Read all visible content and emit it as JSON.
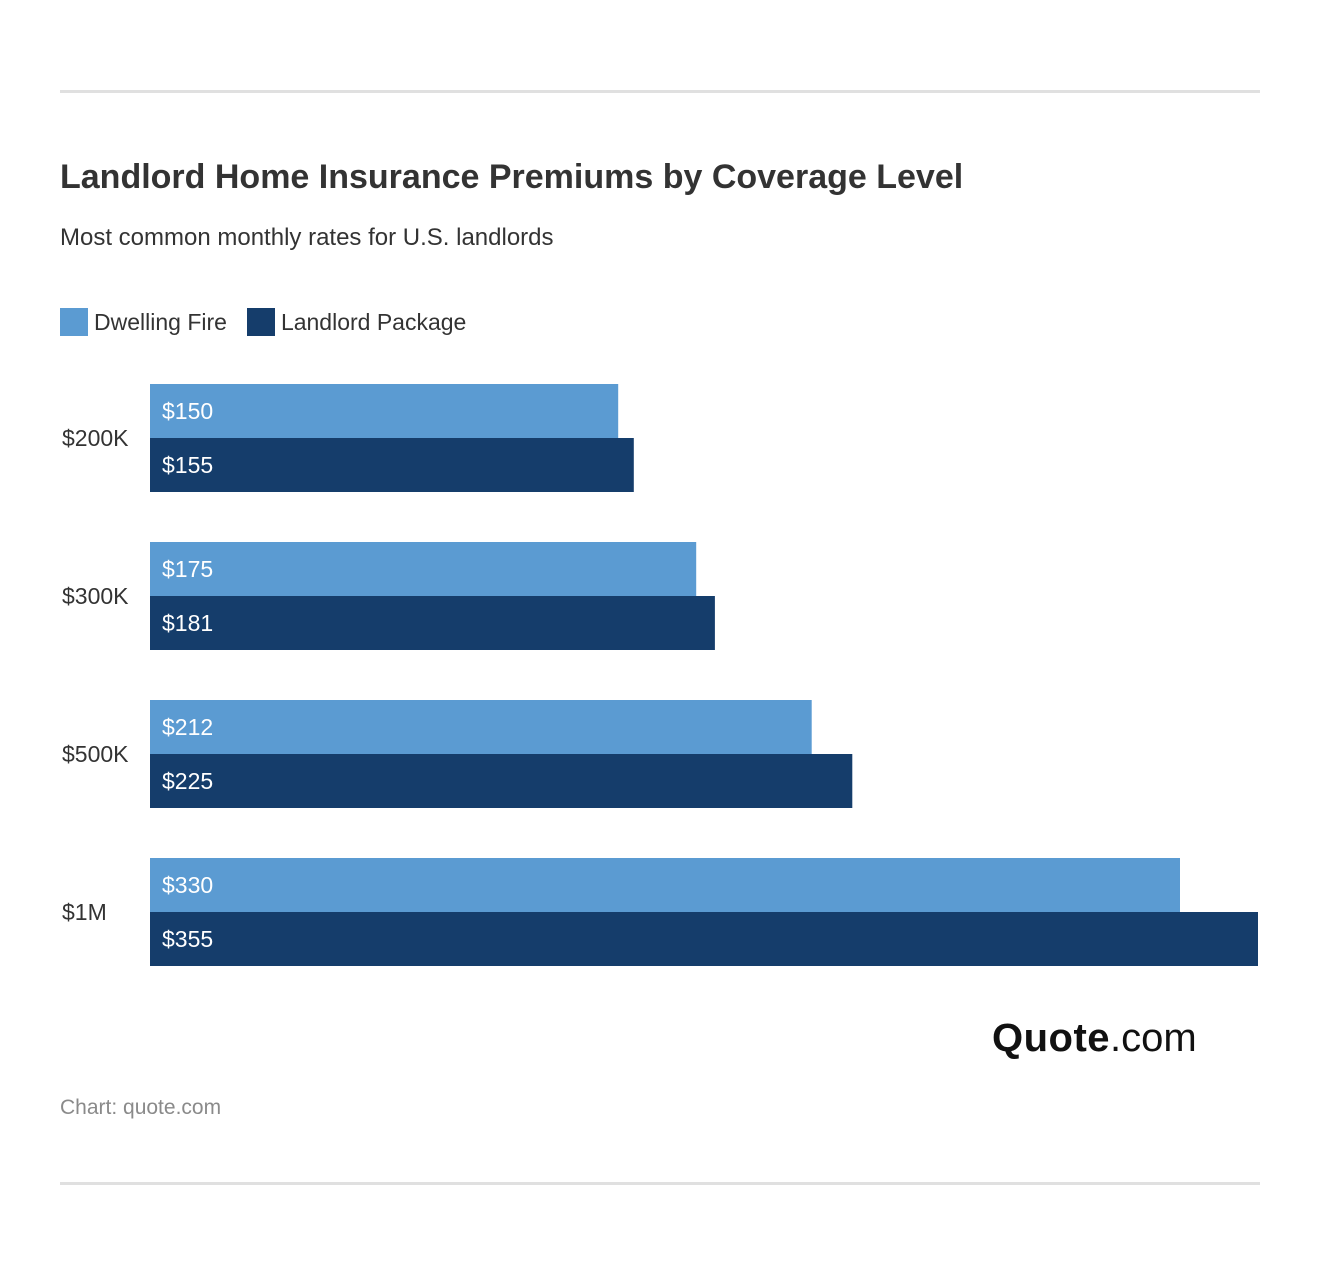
{
  "header": {
    "title": "Landlord Home Insurance Premiums by Coverage Level",
    "subtitle": "Most common monthly rates for U.S. landlords"
  },
  "logo": {
    "brand": "Quote",
    "tld": ".com"
  },
  "footer": {
    "source": "Chart: quote.com"
  },
  "colors": {
    "dwelling_fire": "#5b9bd2",
    "landlord_package": "#153d6b",
    "bar_label": "#ffffff",
    "category_label": "#333333"
  },
  "chart_data": {
    "type": "bar",
    "orientation": "horizontal",
    "title": "Landlord Home Insurance Premiums by Coverage Level",
    "subtitle": "Most common monthly rates for U.S. landlords",
    "categories": [
      "$200K",
      "$300K",
      "$500K",
      "$1M"
    ],
    "series": [
      {
        "name": "Dwelling Fire",
        "values": [
          150,
          175,
          212,
          330
        ],
        "labels": [
          "$150",
          "$175",
          "$212",
          "$330"
        ]
      },
      {
        "name": "Landlord Package",
        "values": [
          155,
          181,
          225,
          355
        ],
        "labels": [
          "$155",
          "$181",
          "$225",
          "$355"
        ]
      }
    ],
    "xlim": [
      0,
      355
    ],
    "grid": false,
    "legend": "top-left"
  }
}
